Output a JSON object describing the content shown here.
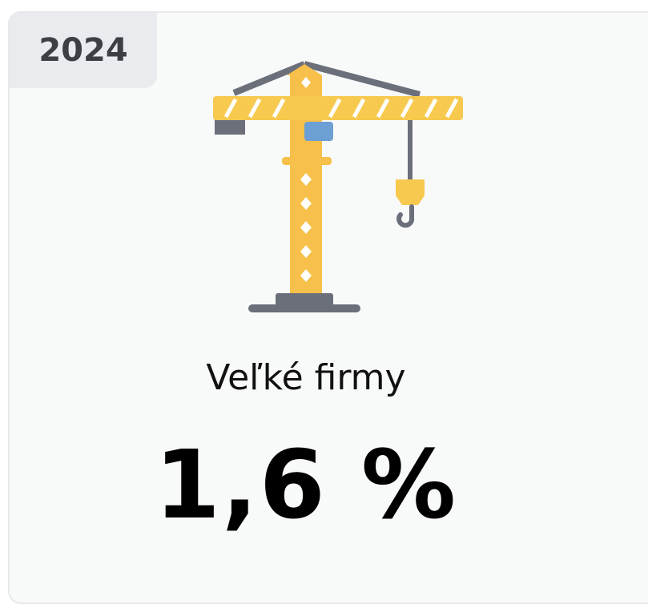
{
  "badge": "2024",
  "label": "Veľké firmy",
  "value": "1,6 %"
}
